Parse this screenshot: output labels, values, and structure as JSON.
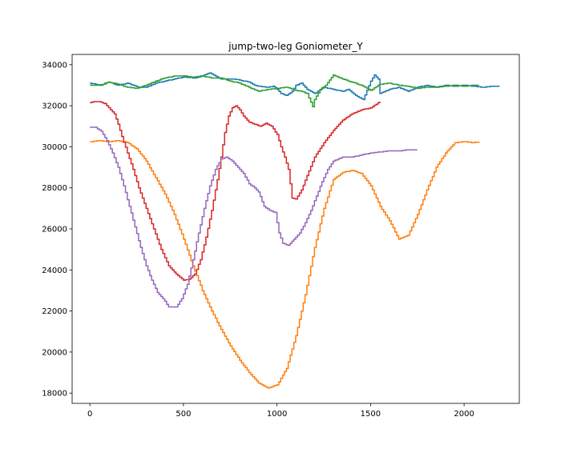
{
  "chart_data": {
    "type": "line",
    "title": "jump-two-leg Goniometer_Y",
    "xlabel": "",
    "ylabel": "",
    "xlim": [
      -95,
      2295
    ],
    "ylim": [
      17500,
      34500
    ],
    "x_ticks": [
      0,
      500,
      1000,
      1500,
      2000
    ],
    "y_ticks": [
      18000,
      20000,
      22000,
      24000,
      26000,
      28000,
      30000,
      32000,
      34000
    ],
    "grid": false,
    "legend": "none",
    "step_size": 10,
    "series": [
      {
        "color": "#1f77b4",
        "points": [
          [
            0,
            33100
          ],
          [
            60,
            33000
          ],
          [
            100,
            33150
          ],
          [
            150,
            33000
          ],
          [
            200,
            33100
          ],
          [
            260,
            32900
          ],
          [
            300,
            32900
          ],
          [
            350,
            33100
          ],
          [
            400,
            33200
          ],
          [
            450,
            33300
          ],
          [
            500,
            33400
          ],
          [
            560,
            33350
          ],
          [
            600,
            33450
          ],
          [
            640,
            33600
          ],
          [
            700,
            33300
          ],
          [
            760,
            33300
          ],
          [
            800,
            33250
          ],
          [
            850,
            33150
          ],
          [
            880,
            33000
          ],
          [
            900,
            32950
          ],
          [
            950,
            32900
          ],
          [
            980,
            32950
          ],
          [
            1000,
            32800
          ],
          [
            1020,
            32600
          ],
          [
            1050,
            32500
          ],
          [
            1080,
            32700
          ],
          [
            1100,
            33000
          ],
          [
            1130,
            33100
          ],
          [
            1160,
            32800
          ],
          [
            1200,
            32600
          ],
          [
            1250,
            32900
          ],
          [
            1300,
            32800
          ],
          [
            1350,
            32700
          ],
          [
            1380,
            32800
          ],
          [
            1420,
            32500
          ],
          [
            1460,
            32300
          ],
          [
            1500,
            33200
          ],
          [
            1520,
            33500
          ],
          [
            1540,
            33300
          ],
          [
            1550,
            32600
          ],
          [
            1600,
            32800
          ],
          [
            1650,
            32900
          ],
          [
            1700,
            32700
          ],
          [
            1750,
            32900
          ],
          [
            1800,
            33000
          ],
          [
            1850,
            32900
          ],
          [
            1900,
            33000
          ],
          [
            1950,
            32950
          ],
          [
            2000,
            33000
          ],
          [
            2050,
            32950
          ],
          [
            2100,
            32900
          ],
          [
            2150,
            32950
          ],
          [
            2190,
            32950
          ]
        ]
      },
      {
        "color": "#ff7f0e",
        "points": [
          [
            0,
            30250
          ],
          [
            50,
            30300
          ],
          [
            100,
            30250
          ],
          [
            150,
            30300
          ],
          [
            200,
            30200
          ],
          [
            250,
            29900
          ],
          [
            300,
            29300
          ],
          [
            350,
            28500
          ],
          [
            400,
            27700
          ],
          [
            450,
            26700
          ],
          [
            500,
            25500
          ],
          [
            550,
            24200
          ],
          [
            600,
            23000
          ],
          [
            650,
            22000
          ],
          [
            700,
            21100
          ],
          [
            750,
            20300
          ],
          [
            800,
            19600
          ],
          [
            850,
            19000
          ],
          [
            900,
            18500
          ],
          [
            950,
            18250
          ],
          [
            1000,
            18400
          ],
          [
            1050,
            19200
          ],
          [
            1100,
            20800
          ],
          [
            1150,
            22800
          ],
          [
            1200,
            25100
          ],
          [
            1250,
            27000
          ],
          [
            1300,
            28400
          ],
          [
            1350,
            28750
          ],
          [
            1400,
            28850
          ],
          [
            1450,
            28700
          ],
          [
            1500,
            28100
          ],
          [
            1550,
            27100
          ],
          [
            1600,
            26400
          ],
          [
            1650,
            25500
          ],
          [
            1700,
            25700
          ],
          [
            1750,
            26700
          ],
          [
            1800,
            27900
          ],
          [
            1850,
            29000
          ],
          [
            1900,
            29700
          ],
          [
            1950,
            30200
          ],
          [
            2000,
            30250
          ],
          [
            2050,
            30200
          ],
          [
            2080,
            30250
          ]
        ]
      },
      {
        "color": "#2ca02c",
        "points": [
          [
            0,
            33000
          ],
          [
            50,
            33000
          ],
          [
            100,
            33150
          ],
          [
            150,
            33050
          ],
          [
            200,
            32900
          ],
          [
            250,
            32850
          ],
          [
            300,
            33000
          ],
          [
            350,
            33200
          ],
          [
            400,
            33350
          ],
          [
            450,
            33450
          ],
          [
            500,
            33450
          ],
          [
            550,
            33400
          ],
          [
            600,
            33450
          ],
          [
            650,
            33350
          ],
          [
            700,
            33350
          ],
          [
            750,
            33200
          ],
          [
            800,
            33100
          ],
          [
            850,
            32900
          ],
          [
            900,
            32700
          ],
          [
            950,
            32800
          ],
          [
            1000,
            32850
          ],
          [
            1050,
            32900
          ],
          [
            1100,
            32750
          ],
          [
            1130,
            32700
          ],
          [
            1160,
            32600
          ],
          [
            1190,
            31950
          ],
          [
            1200,
            32300
          ],
          [
            1230,
            32800
          ],
          [
            1260,
            33000
          ],
          [
            1300,
            33500
          ],
          [
            1350,
            33300
          ],
          [
            1400,
            33150
          ],
          [
            1450,
            33000
          ],
          [
            1500,
            32750
          ],
          [
            1550,
            33050
          ],
          [
            1600,
            33100
          ],
          [
            1650,
            33000
          ],
          [
            1700,
            32950
          ],
          [
            1750,
            32850
          ],
          [
            1800,
            32900
          ],
          [
            1850,
            32900
          ],
          [
            1900,
            32950
          ],
          [
            1950,
            33000
          ],
          [
            2000,
            32950
          ],
          [
            2050,
            33000
          ],
          [
            2080,
            33000
          ]
        ]
      },
      {
        "color": "#d62728",
        "points": [
          [
            0,
            32150
          ],
          [
            20,
            32200
          ],
          [
            50,
            32200
          ],
          [
            80,
            32100
          ],
          [
            100,
            31900
          ],
          [
            130,
            31600
          ],
          [
            150,
            31100
          ],
          [
            170,
            30500
          ],
          [
            200,
            29700
          ],
          [
            230,
            28900
          ],
          [
            260,
            28000
          ],
          [
            300,
            27000
          ],
          [
            340,
            26000
          ],
          [
            380,
            25000
          ],
          [
            420,
            24200
          ],
          [
            460,
            23800
          ],
          [
            500,
            23500
          ],
          [
            530,
            23550
          ],
          [
            560,
            23800
          ],
          [
            590,
            24500
          ],
          [
            620,
            25600
          ],
          [
            650,
            26900
          ],
          [
            680,
            28400
          ],
          [
            700,
            29500
          ],
          [
            720,
            30700
          ],
          [
            740,
            31500
          ],
          [
            760,
            31900
          ],
          [
            780,
            32000
          ],
          [
            800,
            31800
          ],
          [
            820,
            31500
          ],
          [
            850,
            31200
          ],
          [
            880,
            31100
          ],
          [
            910,
            31000
          ],
          [
            940,
            31150
          ],
          [
            970,
            31000
          ],
          [
            1000,
            30600
          ],
          [
            1020,
            30000
          ],
          [
            1040,
            29500
          ],
          [
            1060,
            28900
          ],
          [
            1080,
            27500
          ],
          [
            1100,
            27450
          ],
          [
            1130,
            27900
          ],
          [
            1160,
            28600
          ],
          [
            1200,
            29500
          ],
          [
            1250,
            30200
          ],
          [
            1300,
            30800
          ],
          [
            1350,
            31300
          ],
          [
            1400,
            31600
          ],
          [
            1450,
            31800
          ],
          [
            1500,
            31900
          ],
          [
            1550,
            32200
          ]
        ]
      },
      {
        "color": "#9467bd",
        "points": [
          [
            0,
            30950
          ],
          [
            30,
            30950
          ],
          [
            60,
            30750
          ],
          [
            90,
            30300
          ],
          [
            120,
            29700
          ],
          [
            150,
            29000
          ],
          [
            180,
            28100
          ],
          [
            210,
            27100
          ],
          [
            240,
            26100
          ],
          [
            270,
            25100
          ],
          [
            300,
            24200
          ],
          [
            330,
            23500
          ],
          [
            360,
            22900
          ],
          [
            390,
            22600
          ],
          [
            420,
            22200
          ],
          [
            460,
            22200
          ],
          [
            490,
            22600
          ],
          [
            520,
            23300
          ],
          [
            550,
            24500
          ],
          [
            580,
            25800
          ],
          [
            610,
            27000
          ],
          [
            640,
            28100
          ],
          [
            670,
            28900
          ],
          [
            700,
            29400
          ],
          [
            730,
            29500
          ],
          [
            760,
            29300
          ],
          [
            790,
            29000
          ],
          [
            820,
            28700
          ],
          [
            850,
            28200
          ],
          [
            880,
            28000
          ],
          [
            900,
            27800
          ],
          [
            930,
            27100
          ],
          [
            960,
            26900
          ],
          [
            990,
            26800
          ],
          [
            1010,
            25800
          ],
          [
            1030,
            25300
          ],
          [
            1060,
            25200
          ],
          [
            1090,
            25500
          ],
          [
            1120,
            25800
          ],
          [
            1150,
            26300
          ],
          [
            1180,
            26900
          ],
          [
            1210,
            27600
          ],
          [
            1240,
            28300
          ],
          [
            1270,
            28900
          ],
          [
            1300,
            29300
          ],
          [
            1350,
            29500
          ],
          [
            1400,
            29500
          ],
          [
            1450,
            29600
          ],
          [
            1500,
            29700
          ],
          [
            1550,
            29750
          ],
          [
            1600,
            29800
          ],
          [
            1650,
            29800
          ],
          [
            1700,
            29850
          ],
          [
            1750,
            29850
          ]
        ]
      }
    ]
  }
}
